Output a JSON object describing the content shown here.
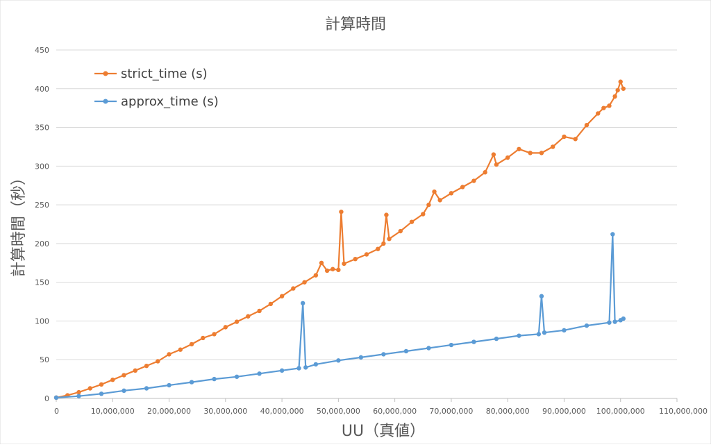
{
  "chart_data": {
    "type": "line",
    "title": "計算時間",
    "xlabel": "UU（真値）",
    "ylabel": "計算時間（秒）",
    "xlim": [
      0,
      110000000
    ],
    "ylim": [
      0,
      450
    ],
    "xticks": [
      0,
      10000000,
      20000000,
      30000000,
      40000000,
      50000000,
      60000000,
      70000000,
      80000000,
      90000000,
      100000000,
      110000000
    ],
    "xtick_labels": [
      "0",
      "10,000,000",
      "20,000,000",
      "30,000,000",
      "40,000,000",
      "50,000,000",
      "60,000,000",
      "70,000,000",
      "80,000,000",
      "90,000,000",
      "100,000,000",
      "110,000,000"
    ],
    "yticks": [
      0,
      50,
      100,
      150,
      200,
      250,
      300,
      350,
      400,
      450
    ],
    "ytick_labels": [
      "0",
      "50",
      "100",
      "150",
      "200",
      "250",
      "300",
      "350",
      "400",
      "450"
    ],
    "grid": "horizontal",
    "legend_position": "top-left",
    "series": [
      {
        "name": "strict_time (s)",
        "color": "#ED7D31",
        "points": [
          [
            0,
            1
          ],
          [
            2000000,
            4
          ],
          [
            4000000,
            8
          ],
          [
            6000000,
            13
          ],
          [
            8000000,
            18
          ],
          [
            10000000,
            24
          ],
          [
            12000000,
            30
          ],
          [
            14000000,
            36
          ],
          [
            16000000,
            42
          ],
          [
            18000000,
            48
          ],
          [
            20000000,
            57
          ],
          [
            22000000,
            63
          ],
          [
            24000000,
            70
          ],
          [
            26000000,
            78
          ],
          [
            28000000,
            83
          ],
          [
            30000000,
            92
          ],
          [
            32000000,
            99
          ],
          [
            34000000,
            106
          ],
          [
            36000000,
            113
          ],
          [
            38000000,
            122
          ],
          [
            40000000,
            132
          ],
          [
            42000000,
            142
          ],
          [
            44000000,
            150
          ],
          [
            46000000,
            159
          ],
          [
            47000000,
            175
          ],
          [
            48000000,
            165
          ],
          [
            49000000,
            167
          ],
          [
            50000000,
            166
          ],
          [
            50500000,
            241
          ],
          [
            51000000,
            174
          ],
          [
            53000000,
            180
          ],
          [
            55000000,
            186
          ],
          [
            57000000,
            193
          ],
          [
            58000000,
            200
          ],
          [
            58500000,
            237
          ],
          [
            59000000,
            206
          ],
          [
            61000000,
            216
          ],
          [
            63000000,
            228
          ],
          [
            65000000,
            238
          ],
          [
            66000000,
            250
          ],
          [
            67000000,
            267
          ],
          [
            68000000,
            256
          ],
          [
            70000000,
            265
          ],
          [
            72000000,
            273
          ],
          [
            74000000,
            281
          ],
          [
            76000000,
            292
          ],
          [
            77500000,
            315
          ],
          [
            78000000,
            302
          ],
          [
            80000000,
            311
          ],
          [
            82000000,
            322
          ],
          [
            84000000,
            317
          ],
          [
            86000000,
            317
          ],
          [
            88000000,
            325
          ],
          [
            90000000,
            338
          ],
          [
            92000000,
            335
          ],
          [
            94000000,
            353
          ],
          [
            96000000,
            368
          ],
          [
            97000000,
            375
          ],
          [
            98000000,
            378
          ],
          [
            99000000,
            390
          ],
          [
            99500000,
            398
          ],
          [
            100000000,
            409
          ],
          [
            100500000,
            400
          ]
        ]
      },
      {
        "name": "approx_time (s)",
        "color": "#5B9BD5",
        "points": [
          [
            0,
            1
          ],
          [
            4000000,
            3
          ],
          [
            8000000,
            6
          ],
          [
            12000000,
            10
          ],
          [
            16000000,
            13
          ],
          [
            20000000,
            17
          ],
          [
            24000000,
            21
          ],
          [
            28000000,
            25
          ],
          [
            32000000,
            28
          ],
          [
            36000000,
            32
          ],
          [
            40000000,
            36
          ],
          [
            43000000,
            39
          ],
          [
            43700000,
            123
          ],
          [
            44200000,
            40
          ],
          [
            46000000,
            44
          ],
          [
            50000000,
            49
          ],
          [
            54000000,
            53
          ],
          [
            58000000,
            57
          ],
          [
            62000000,
            61
          ],
          [
            66000000,
            65
          ],
          [
            70000000,
            69
          ],
          [
            74000000,
            73
          ],
          [
            78000000,
            77
          ],
          [
            82000000,
            81
          ],
          [
            85500000,
            83
          ],
          [
            86000000,
            132
          ],
          [
            86500000,
            85
          ],
          [
            90000000,
            88
          ],
          [
            94000000,
            94
          ],
          [
            98000000,
            98
          ],
          [
            98600000,
            212
          ],
          [
            99000000,
            99
          ],
          [
            100000000,
            101
          ],
          [
            100500000,
            103
          ]
        ]
      }
    ]
  }
}
